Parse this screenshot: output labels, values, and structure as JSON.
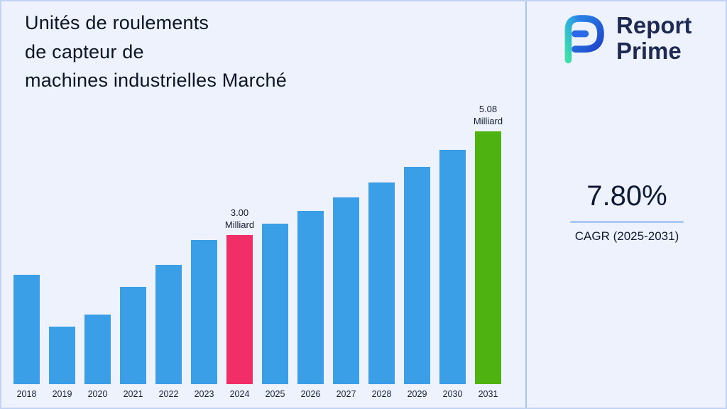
{
  "page": {
    "background": "#eef2fc",
    "border_color": "#c2d4f2",
    "divider_color": "#a6c4ec"
  },
  "header": {
    "title_lines": [
      "Unités de roulements",
      "de capteur de",
      "machines industrielles Marché"
    ]
  },
  "brand": {
    "logo": "report-prime-logo",
    "name_line1": "Report",
    "name_line2": "Prime",
    "name_color": "#1e2a52",
    "logo_blue": "#2050d8",
    "logo_teal": "#3fe0a8"
  },
  "stats": {
    "cagr_value": "7.80%",
    "cagr_label": "CAGR (2025-2031)",
    "underline_color": "#a9c9f4"
  },
  "chart_data": {
    "type": "bar",
    "title": "Unités de roulements de capteur de machines industrielles Marché",
    "unit": "Milliard",
    "categories": [
      "2018",
      "2019",
      "2020",
      "2021",
      "2022",
      "2023",
      "2024",
      "2025",
      "2026",
      "2027",
      "2028",
      "2029",
      "2030",
      "2031"
    ],
    "values": [
      2.2,
      1.15,
      1.4,
      1.95,
      2.4,
      2.9,
      3.0,
      3.23,
      3.49,
      3.76,
      4.05,
      4.37,
      4.71,
      5.08
    ],
    "ylim": [
      0,
      5.5
    ],
    "grid": false,
    "legend": false,
    "bar_color": "#3b9fe8",
    "highlight_colors": {
      "2024": "#f22e68",
      "2031": "#4eb211"
    },
    "annotations": [
      {
        "category": "2024",
        "value_label": "3.00",
        "unit_label": "Milliard"
      },
      {
        "category": "2031",
        "value_label": "5.08",
        "unit_label": "Milliard"
      }
    ]
  }
}
